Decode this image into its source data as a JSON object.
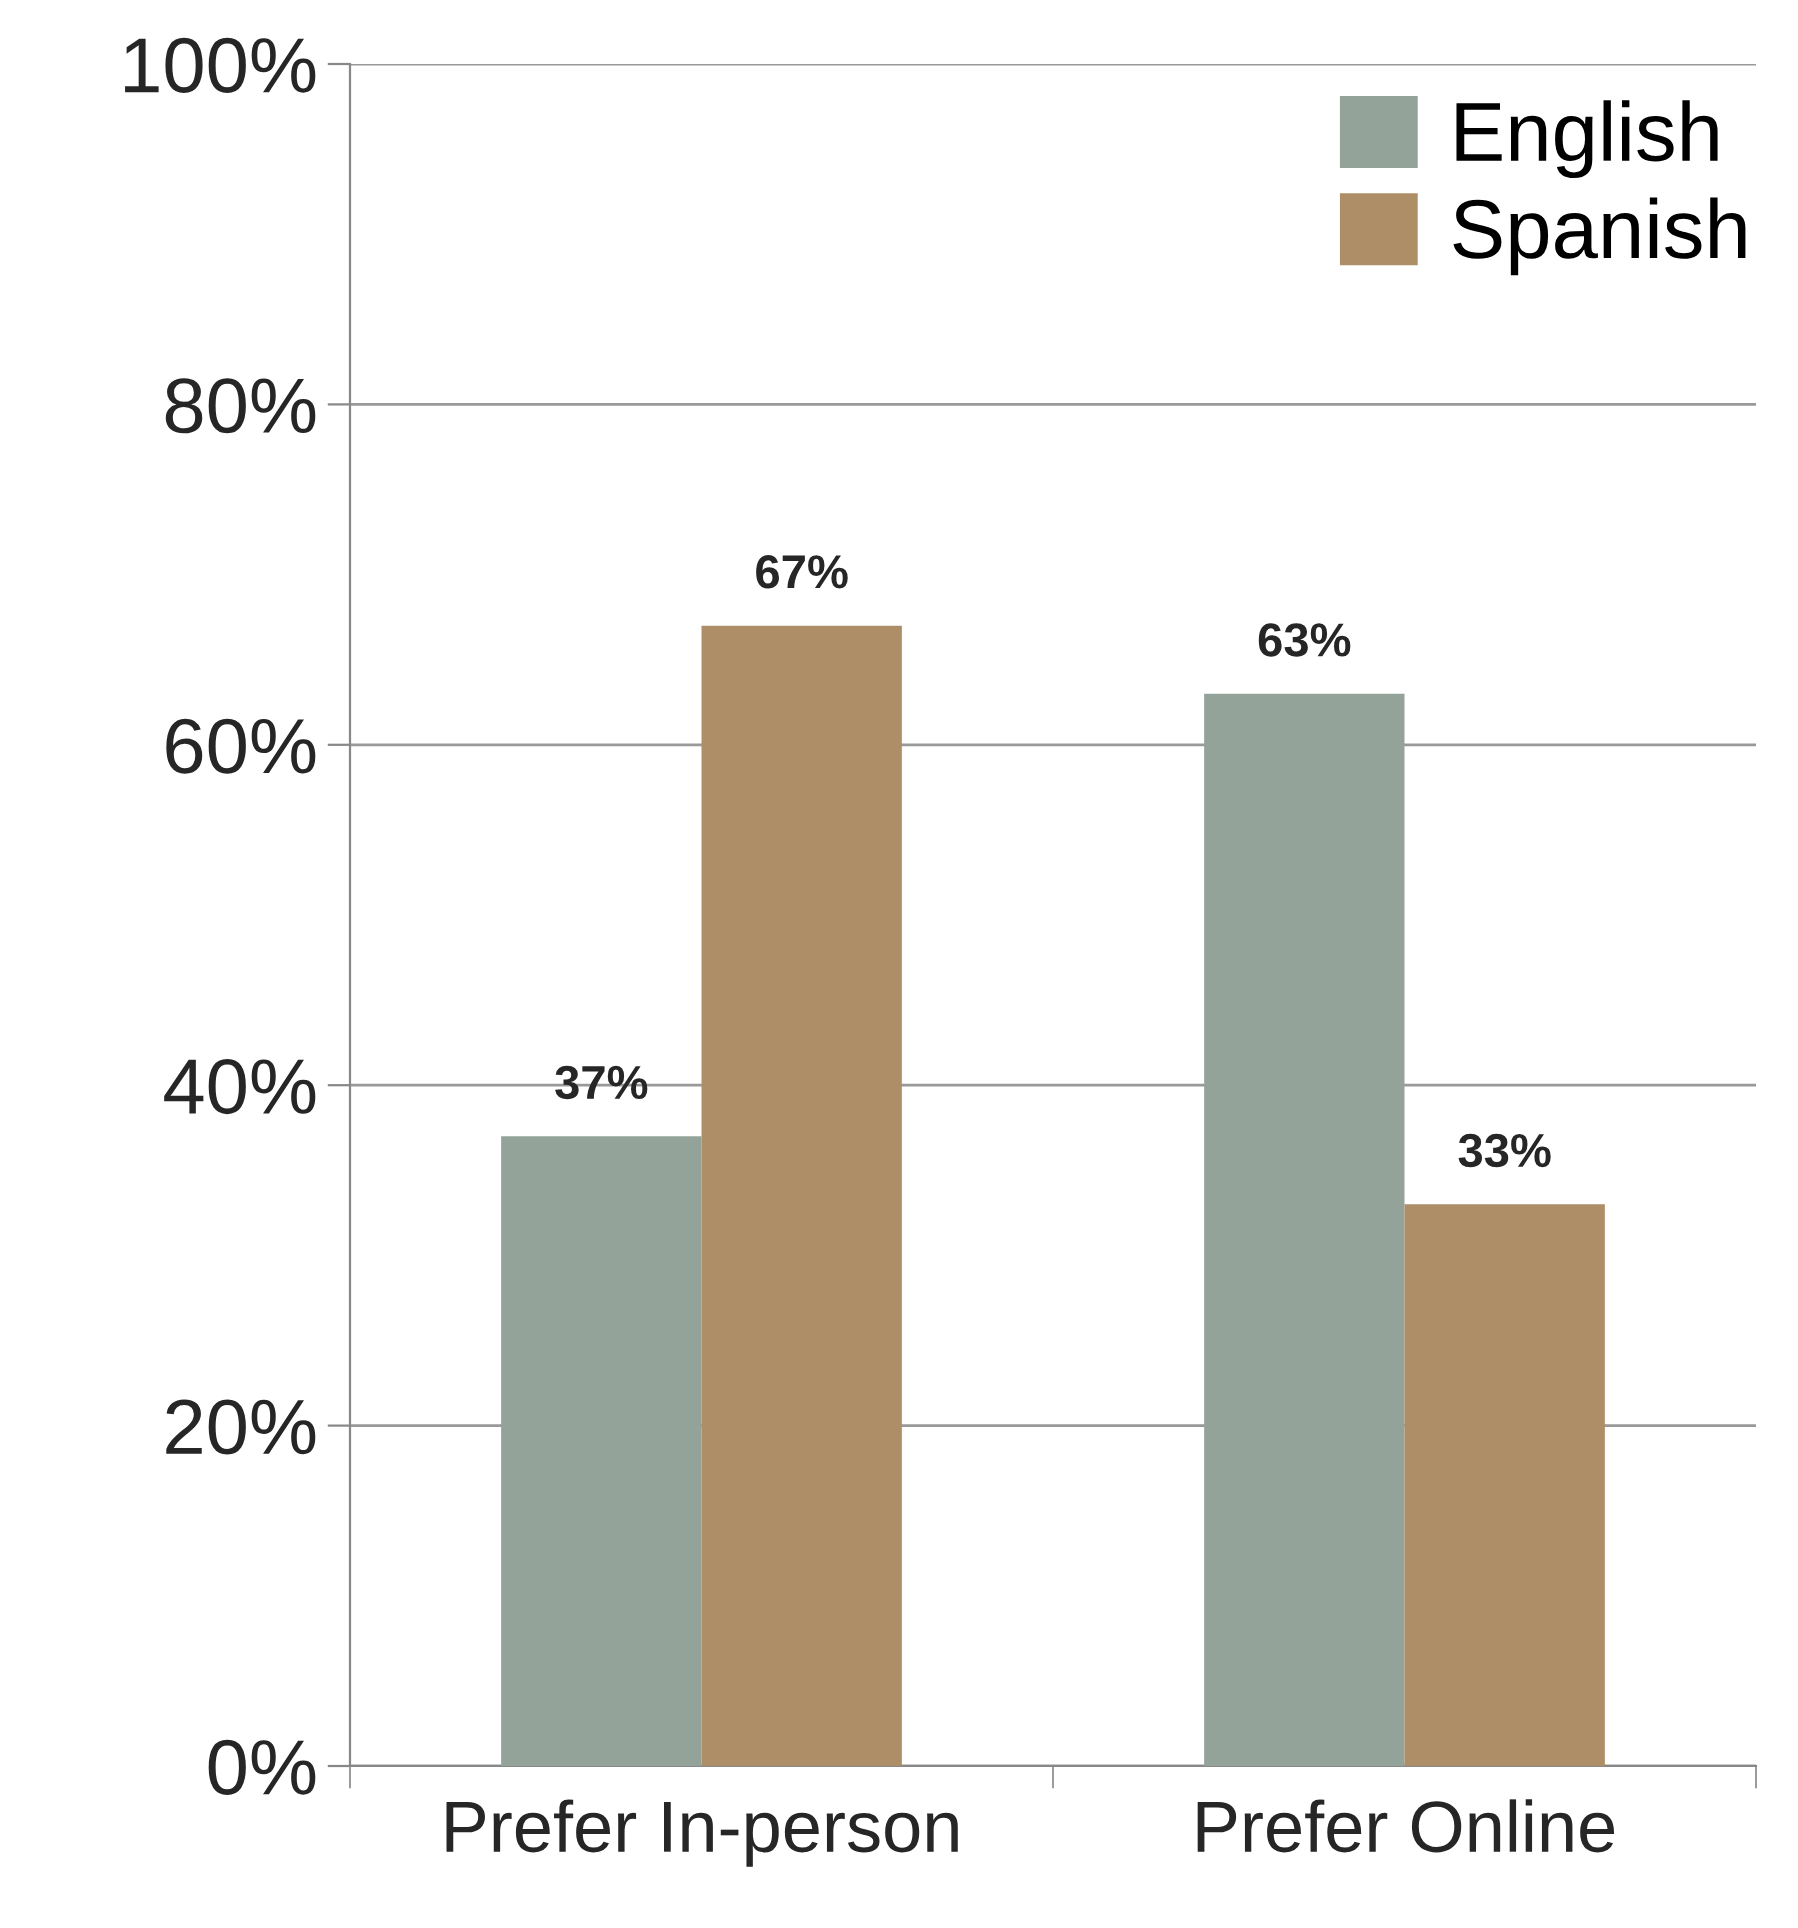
{
  "chart_data": {
    "type": "bar",
    "categories": [
      "Prefer In-person",
      "Prefer Online"
    ],
    "series": [
      {
        "name": "English",
        "color": "#94a39a",
        "values": [
          37,
          63
        ],
        "value_labels": [
          "37%",
          "63%"
        ]
      },
      {
        "name": "Spanish",
        "color": "#ad8e66",
        "values": [
          67,
          33
        ],
        "value_labels": [
          "67%",
          "33%"
        ]
      }
    ],
    "ylim": [
      0,
      100
    ],
    "yticks": [
      {
        "value": 0,
        "label": "0%"
      },
      {
        "value": 20,
        "label": "20%"
      },
      {
        "value": 40,
        "label": "40%"
      },
      {
        "value": 60,
        "label": "60%"
      },
      {
        "value": 80,
        "label": "80%"
      },
      {
        "value": 100,
        "label": "100%"
      }
    ],
    "grid": "y",
    "legend": "top right"
  }
}
